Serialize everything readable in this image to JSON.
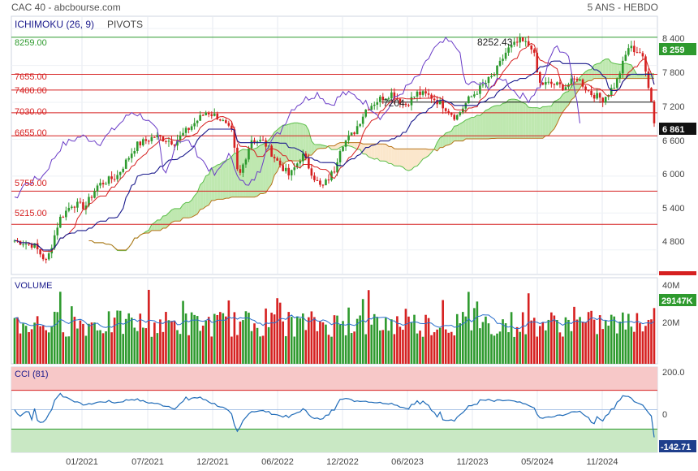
{
  "header": {
    "left": "CAC 40 - abcbourse.com",
    "right": "5 ANS - HEBDO"
  },
  "colors": {
    "up": "#2e9a2e",
    "down": "#d62020",
    "tenkan": "#d62020",
    "kijun": "#1a1a8c",
    "chikou": "#6a3cc7",
    "cloud_bull": "#bfe8b0",
    "cloud_bear": "#fbe7cc",
    "pivot_line": "#d62020",
    "top_line": "#2e9a2e",
    "vol_avg": "#2a6fcc",
    "cci_line": "#1f6bb8",
    "cci_over": "#f7c8c8",
    "cci_under": "#c9e8c4",
    "last_price_bg": "#111111",
    "last_vol_bg": "#2e9a2e",
    "last_cci_bg": "#1f3f8c"
  },
  "panels": {
    "price": {
      "indicator_label": "ICHIMOKU (26, 9)",
      "overlay_label": "PIVOTS",
      "y_ticks": [
        "8 400",
        "7 800",
        "7 200",
        "6 600",
        "6 000",
        "5 400",
        "4 800"
      ],
      "pivot_labels": [
        "8259.00",
        "7655.00",
        "7400.00",
        "7030.00",
        "6655.00",
        "5755.00",
        "5215.00"
      ],
      "peak_annotation": "8252.43",
      "low_annotation": "7204",
      "last_price_badge": "6 861",
      "top_badge": "8 259"
    },
    "volume": {
      "label": "VOLUME",
      "y_ticks": [
        "40M",
        "20M"
      ],
      "last_badge": "29147K"
    },
    "cci": {
      "label": "CCI (81)",
      "y_ticks": [
        "200.0",
        "0"
      ],
      "last_badge": "-142.71"
    }
  },
  "x_axis": {
    "labels": [
      "01/2021",
      "07/2021",
      "12/2021",
      "06/2022",
      "12/2022",
      "06/2023",
      "11/2023",
      "05/2024",
      "11/2024"
    ]
  },
  "chart_data": {
    "type": "line",
    "title": "CAC 40",
    "subtitle": "5 ANS - HEBDO",
    "price": {
      "ylim": [
        4400,
        8600
      ],
      "pivots": [
        8259,
        7655,
        7400,
        7030,
        6655,
        5755,
        5215
      ],
      "annotations": [
        {
          "label": "8252.43",
          "value": 8252.43
        },
        {
          "label": "7204",
          "value": 7204
        }
      ],
      "close_path": [
        {
          "x": 0.0,
          "y": 4950
        },
        {
          "x": 0.03,
          "y": 4880
        },
        {
          "x": 0.05,
          "y": 4600
        },
        {
          "x": 0.07,
          "y": 5300
        },
        {
          "x": 0.09,
          "y": 5550
        },
        {
          "x": 0.11,
          "y": 5500
        },
        {
          "x": 0.13,
          "y": 5850
        },
        {
          "x": 0.16,
          "y": 6000
        },
        {
          "x": 0.19,
          "y": 6500
        },
        {
          "x": 0.22,
          "y": 6650
        },
        {
          "x": 0.25,
          "y": 6550
        },
        {
          "x": 0.28,
          "y": 6850
        },
        {
          "x": 0.3,
          "y": 7050
        },
        {
          "x": 0.32,
          "y": 6950
        },
        {
          "x": 0.34,
          "y": 6700
        },
        {
          "x": 0.35,
          "y": 5950
        },
        {
          "x": 0.37,
          "y": 6600
        },
        {
          "x": 0.39,
          "y": 6550
        },
        {
          "x": 0.41,
          "y": 6250
        },
        {
          "x": 0.43,
          "y": 6000
        },
        {
          "x": 0.45,
          "y": 6350
        },
        {
          "x": 0.47,
          "y": 5950
        },
        {
          "x": 0.48,
          "y": 5800
        },
        {
          "x": 0.5,
          "y": 6100
        },
        {
          "x": 0.51,
          "y": 6500
        },
        {
          "x": 0.53,
          "y": 6700
        },
        {
          "x": 0.55,
          "y": 7100
        },
        {
          "x": 0.57,
          "y": 7250
        },
        {
          "x": 0.59,
          "y": 7350
        },
        {
          "x": 0.61,
          "y": 7150
        },
        {
          "x": 0.63,
          "y": 7350
        },
        {
          "x": 0.65,
          "y": 7300
        },
        {
          "x": 0.67,
          "y": 7150
        },
        {
          "x": 0.69,
          "y": 6950
        },
        {
          "x": 0.71,
          "y": 7250
        },
        {
          "x": 0.73,
          "y": 7450
        },
        {
          "x": 0.75,
          "y": 7650
        },
        {
          "x": 0.77,
          "y": 8050
        },
        {
          "x": 0.79,
          "y": 8200
        },
        {
          "x": 0.81,
          "y": 8100
        },
        {
          "x": 0.82,
          "y": 7500
        },
        {
          "x": 0.84,
          "y": 7500
        },
        {
          "x": 0.86,
          "y": 7450
        },
        {
          "x": 0.88,
          "y": 7600
        },
        {
          "x": 0.9,
          "y": 7350
        },
        {
          "x": 0.92,
          "y": 7250
        },
        {
          "x": 0.94,
          "y": 7500
        },
        {
          "x": 0.96,
          "y": 8100
        },
        {
          "x": 0.98,
          "y": 8000
        },
        {
          "x": 0.995,
          "y": 7300
        },
        {
          "x": 1.0,
          "y": 6861
        }
      ]
    },
    "volume": {
      "ylim": [
        0,
        45000000
      ],
      "last": 29147000
    },
    "cci": {
      "ylim": [
        -220,
        220
      ],
      "last": -142.71,
      "overbought": 100,
      "oversold": -100
    }
  }
}
